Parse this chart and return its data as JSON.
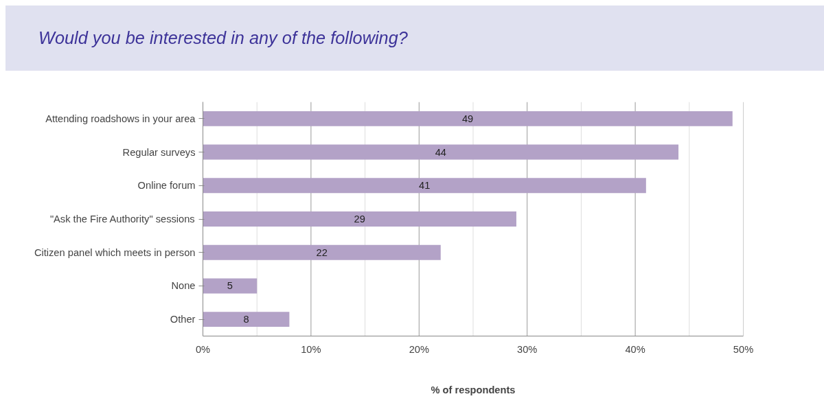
{
  "chart_data": {
    "type": "bar",
    "orientation": "horizontal",
    "title": "Would you be interested in any of the following?",
    "xlabel": "% of respondents",
    "categories": [
      "Attending roadshows in your area",
      "Regular surveys",
      "Online forum",
      "\"Ask the Fire Authority\" sessions",
      "Citizen panel which meets in person",
      "None",
      "Other"
    ],
    "values": [
      49,
      44,
      41,
      29,
      22,
      5,
      8
    ],
    "color": "#b3a2c7",
    "data_labels": true,
    "xlim": [
      0,
      50
    ],
    "xticks": [
      {
        "value": 0,
        "label": "0%"
      },
      {
        "value": 5,
        "label": null
      },
      {
        "value": 10,
        "label": "10%"
      },
      {
        "value": 15,
        "label": null
      },
      {
        "value": 20,
        "label": "20%"
      },
      {
        "value": 25,
        "label": null
      },
      {
        "value": 30,
        "label": "30%"
      },
      {
        "value": 35,
        "label": null
      },
      {
        "value": 40,
        "label": "40%"
      },
      {
        "value": 45,
        "label": null
      },
      {
        "value": 50,
        "label": "50%"
      }
    ],
    "grid": "x"
  }
}
